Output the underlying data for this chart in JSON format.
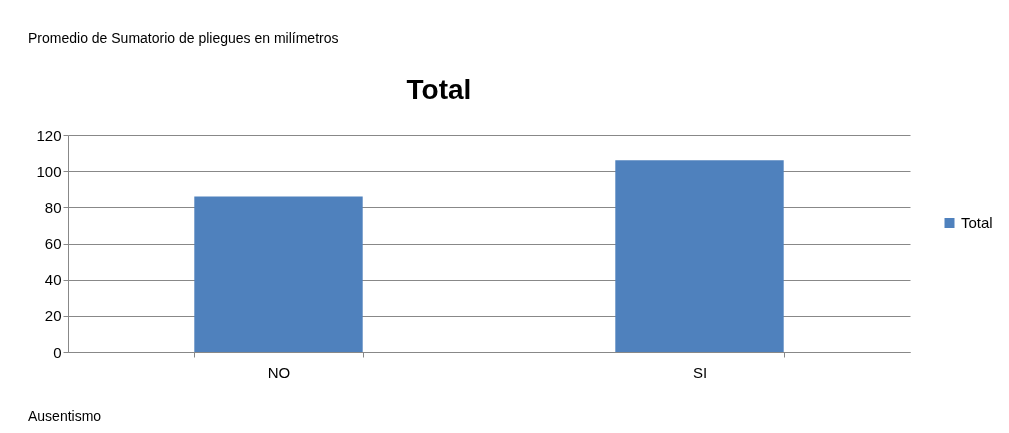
{
  "chart_data": {
    "type": "bar",
    "title": "Total",
    "categories": [
      "NO",
      "SI"
    ],
    "series": [
      {
        "name": "Total",
        "color": "#4f81bd",
        "values": [
          86,
          106
        ]
      }
    ],
    "ylim": [
      0,
      120
    ],
    "yticks": [
      0,
      20,
      40,
      60,
      80,
      100,
      120
    ],
    "grid": "y",
    "legend": "right",
    "annotations": [
      "Promedio de Sumatorio de pliegues en milímetros",
      "Ausentismo"
    ]
  }
}
